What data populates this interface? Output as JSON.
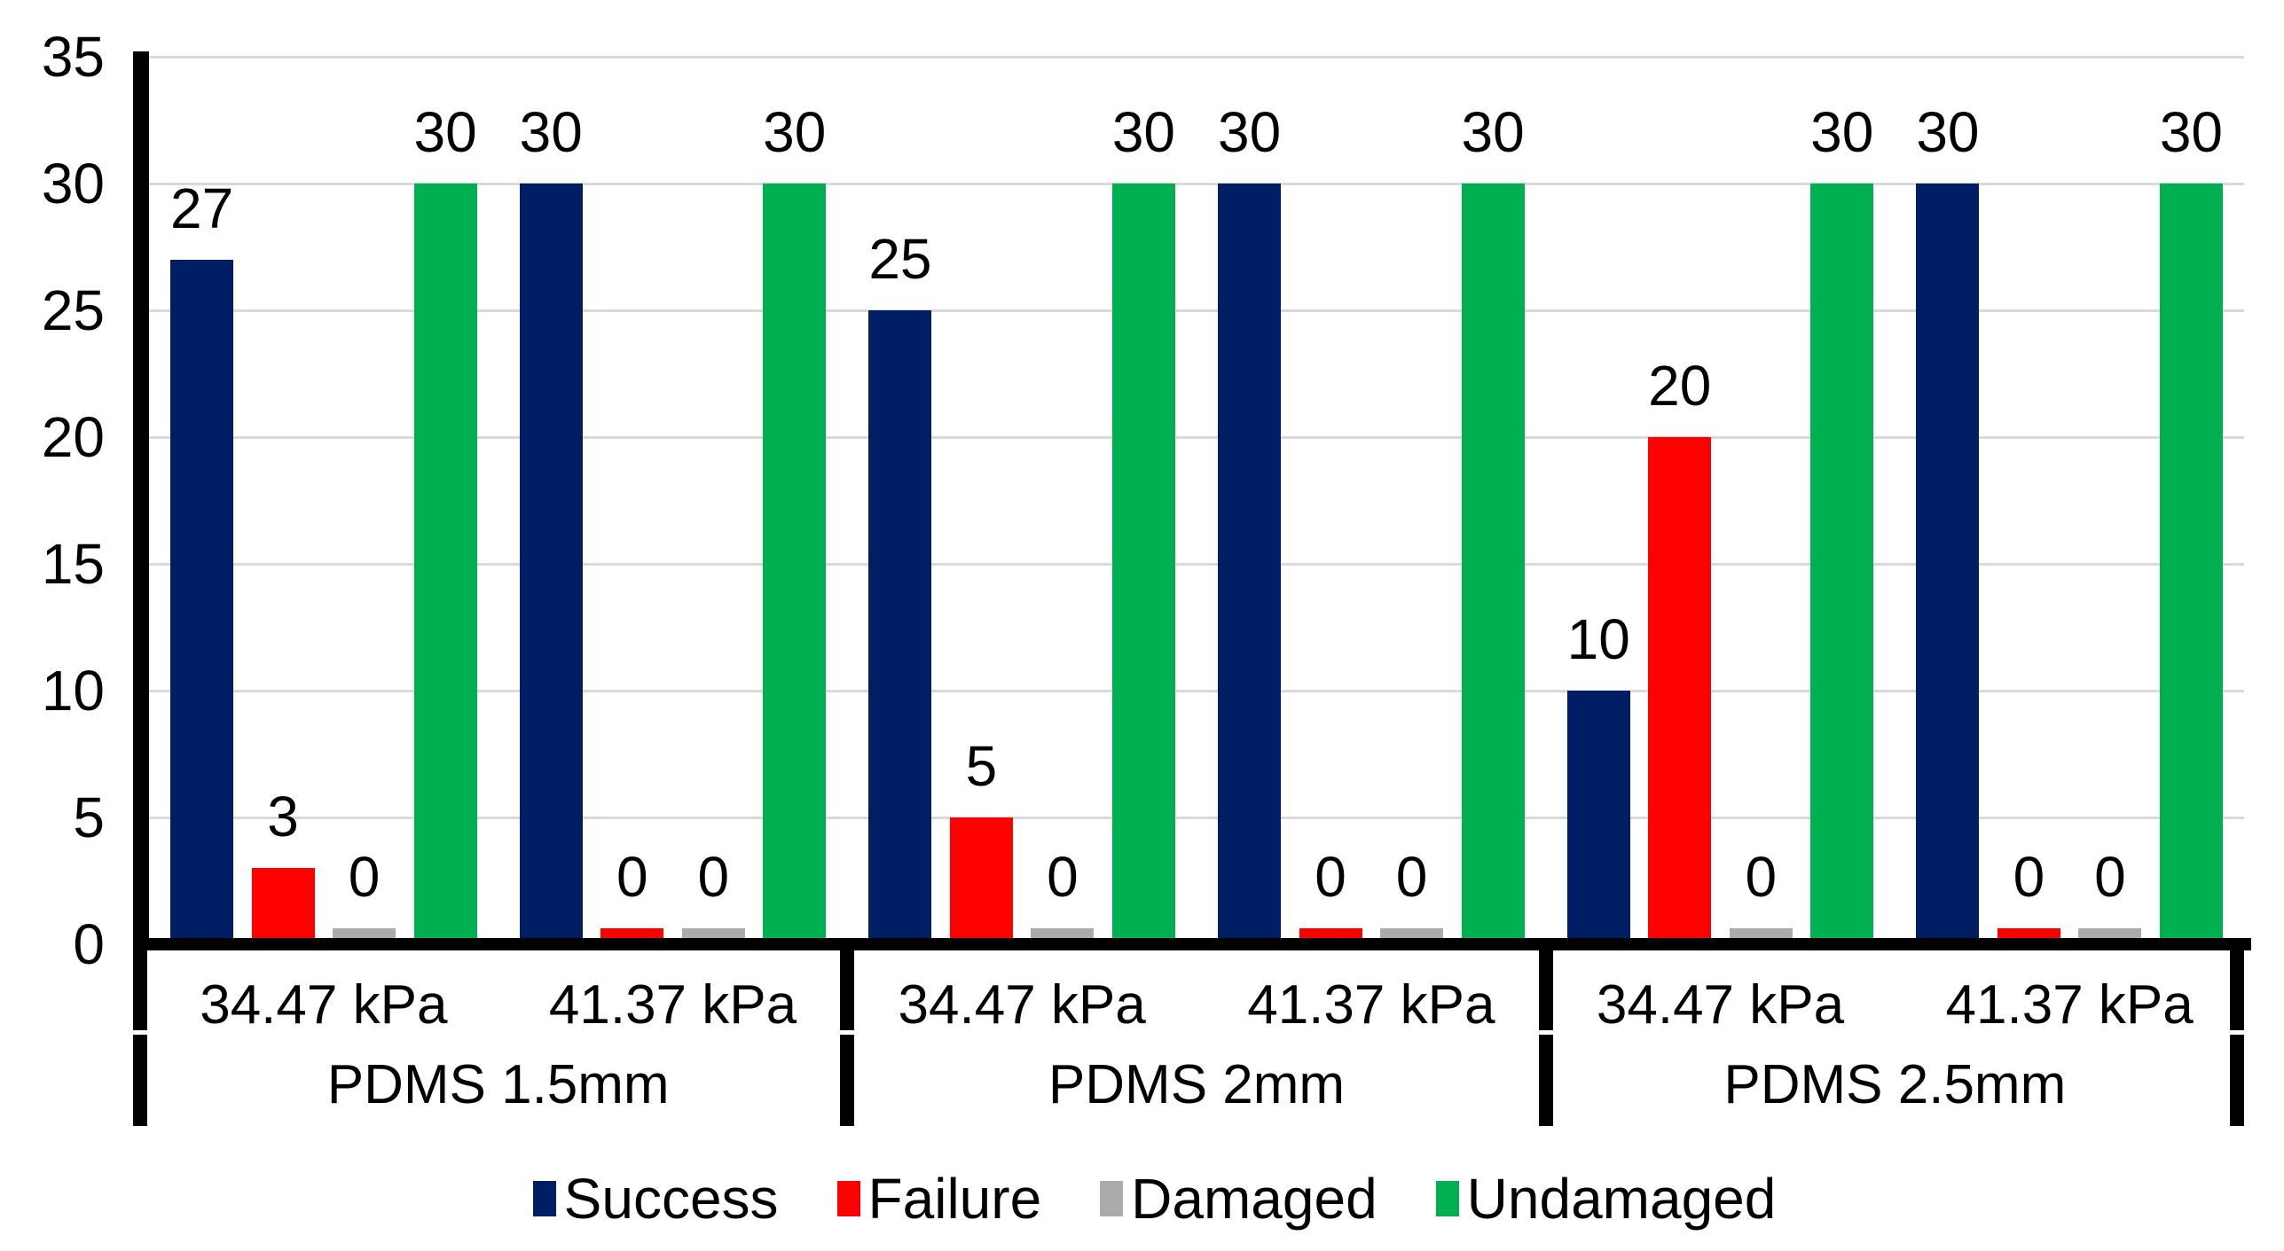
{
  "chart_data": {
    "type": "bar",
    "title": "",
    "grid": true,
    "legend_position": "bottom",
    "background": "#FFFFFF",
    "gridline_color": "#D9D9D9",
    "axis_color": "#000000",
    "yaxis": {
      "min": 0,
      "max": 35,
      "step": 5,
      "ticks": [
        0,
        5,
        10,
        15,
        20,
        25,
        30,
        35
      ],
      "tick_labels": [
        "0",
        "5",
        "10",
        "15",
        "20",
        "25",
        "30",
        "35"
      ]
    },
    "series": [
      {
        "name": "Success",
        "color": "#001E63"
      },
      {
        "name": "Failure",
        "color": "#FF0000"
      },
      {
        "name": "Damaged",
        "color": "#ABABAB"
      },
      {
        "name": "Undamaged",
        "color": "#00B050"
      }
    ],
    "groups": [
      {
        "label": "PDMS 1.5mm",
        "subgroups": [
          {
            "label": "34.47 kPa",
            "values": [
              27,
              3,
              0,
              30
            ],
            "value_labels": [
              "27",
              "3",
              "0",
              "30"
            ]
          },
          {
            "label": "41.37 kPa",
            "values": [
              30,
              0,
              0,
              30
            ],
            "value_labels": [
              "30",
              "0",
              "0",
              "30"
            ]
          }
        ]
      },
      {
        "label": "PDMS 2mm",
        "subgroups": [
          {
            "label": "34.47 kPa",
            "values": [
              25,
              5,
              0,
              30
            ],
            "value_labels": [
              "25",
              "5",
              "0",
              "30"
            ]
          },
          {
            "label": "41.37 kPa",
            "values": [
              30,
              0,
              0,
              30
            ],
            "value_labels": [
              "30",
              "0",
              "0",
              "30"
            ]
          }
        ]
      },
      {
        "label": "PDMS 2.5mm",
        "subgroups": [
          {
            "label": "34.47 kPa",
            "values": [
              10,
              20,
              0,
              30
            ],
            "value_labels": [
              "10",
              "20",
              "0",
              "30"
            ]
          },
          {
            "label": "41.37 kPa",
            "values": [
              30,
              0,
              0,
              30
            ],
            "value_labels": [
              "30",
              "0",
              "0",
              "30"
            ]
          }
        ]
      }
    ]
  }
}
